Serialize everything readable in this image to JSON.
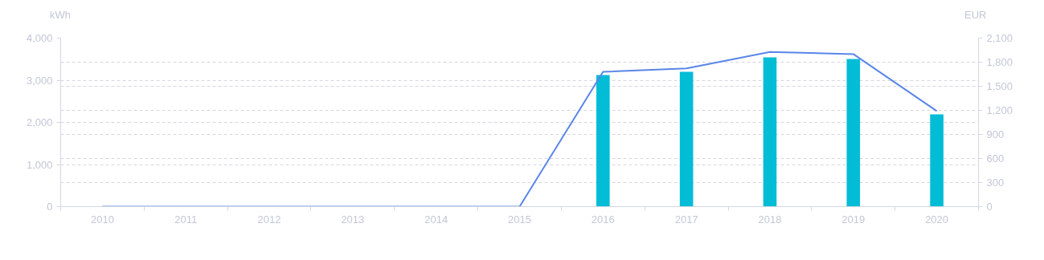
{
  "chart_data": {
    "type": "bar",
    "ylabel": "kWh",
    "y2label": "EUR",
    "categories": [
      "2010",
      "2011",
      "2012",
      "2013",
      "2014",
      "2015",
      "2016",
      "2017",
      "2018",
      "2019",
      "2020"
    ],
    "series": [
      {
        "axis": "y2",
        "color": "#03bcd6",
        "values": [
          null,
          null,
          null,
          null,
          null,
          null,
          1640,
          1680,
          1860,
          1840,
          1150
        ]
      },
      {
        "type": "line",
        "axis": "y",
        "color": "#5a86e8",
        "values": [
          0,
          0,
          0,
          0,
          0,
          0,
          3200,
          3280,
          3670,
          3620,
          2270
        ]
      }
    ],
    "ylim": [
      0,
      4000
    ],
    "yticks": [
      0,
      {
        "value": 1000,
        "label": "1,000"
      },
      {
        "value": 2000,
        "label": "2,000"
      },
      {
        "value": 3000,
        "label": "3,000"
      },
      {
        "value": 4000,
        "label": "4,000"
      }
    ],
    "y2lim": [
      0,
      2100
    ],
    "y2ticks": [
      0,
      300,
      600,
      900,
      {
        "value": 1200,
        "label": "1,200"
      },
      {
        "value": 1500,
        "label": "1,500"
      },
      {
        "value": 1800,
        "label": "1,800"
      },
      {
        "value": 2100,
        "label": "2,100"
      }
    ],
    "grid": "y",
    "marker": "none",
    "line_style": "solid"
  }
}
